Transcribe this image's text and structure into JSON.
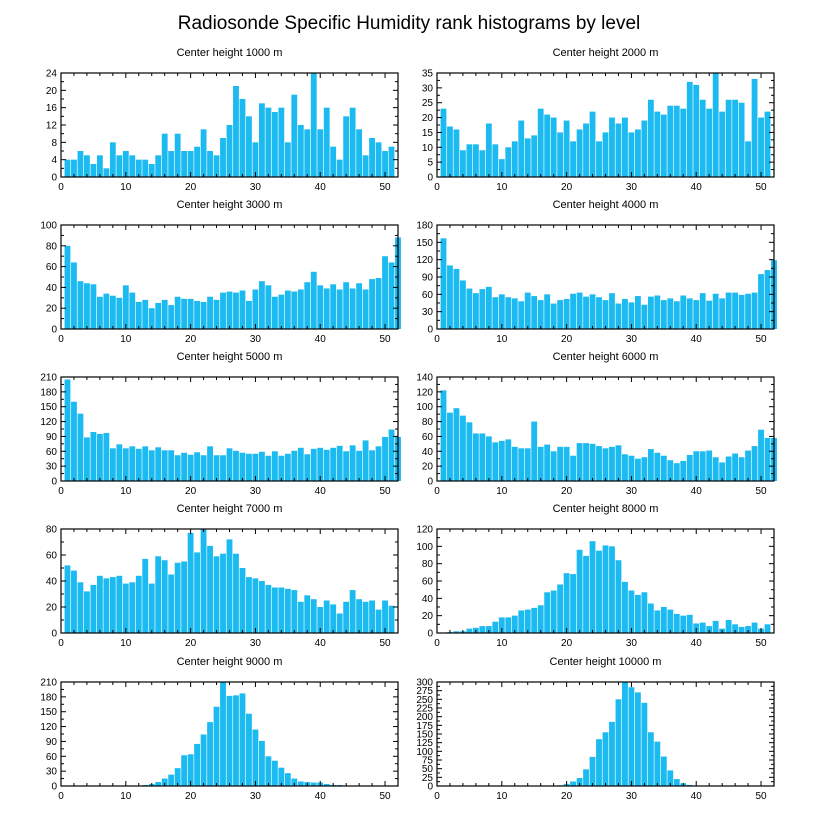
{
  "title": "Radiosonde Specific Humidity rank histograms by level",
  "bar_color": "#1bbaf0",
  "chart_data": [
    {
      "type": "bar",
      "title": "Center height 1000 m",
      "xlim": [
        0,
        52
      ],
      "ylim": [
        0,
        24
      ],
      "yticks": [
        0,
        4,
        8,
        12,
        16,
        20,
        24
      ],
      "xticks": [
        0,
        10,
        20,
        30,
        40,
        50
      ],
      "values": [
        4,
        4,
        6,
        5,
        3,
        5,
        2,
        8,
        5,
        6,
        5,
        4,
        4,
        3,
        5,
        10,
        6,
        10,
        6,
        6,
        7,
        11,
        6,
        5,
        9,
        12,
        21,
        18,
        14,
        8,
        17,
        16,
        15,
        16,
        8,
        19,
        12,
        11,
        24,
        11,
        16,
        7,
        4,
        14,
        16,
        11,
        5,
        9,
        8,
        6,
        7
      ]
    },
    {
      "type": "bar",
      "title": "Center height 2000 m",
      "xlim": [
        0,
        52
      ],
      "ylim": [
        0,
        35
      ],
      "yticks": [
        0,
        5,
        10,
        15,
        20,
        25,
        30,
        35
      ],
      "xticks": [
        0,
        10,
        20,
        30,
        40,
        50
      ],
      "values": [
        23,
        17,
        16,
        9,
        11,
        11,
        9,
        18,
        11,
        6,
        10,
        12,
        19,
        13,
        14,
        23,
        21,
        20,
        15,
        19,
        12,
        16,
        18,
        22,
        12,
        15,
        20,
        18,
        20,
        15,
        16,
        19,
        26,
        22,
        21,
        24,
        24,
        23,
        32,
        31,
        26,
        23,
        35,
        22,
        26,
        26,
        25,
        12,
        33,
        20,
        22
      ]
    },
    {
      "type": "bar",
      "title": "Center height 3000 m",
      "xlim": [
        0,
        52
      ],
      "ylim": [
        0,
        100
      ],
      "yticks": [
        0,
        20,
        40,
        60,
        80,
        100
      ],
      "xticks": [
        0,
        10,
        20,
        30,
        40,
        50
      ],
      "values": [
        80,
        64,
        46,
        44,
        43,
        31,
        34,
        32,
        30,
        42,
        35,
        26,
        28,
        20,
        25,
        28,
        23,
        31,
        29,
        29,
        27,
        26,
        31,
        28,
        35,
        36,
        35,
        37,
        27,
        38,
        46,
        42,
        31,
        33,
        37,
        36,
        38,
        45,
        55,
        42,
        39,
        43,
        38,
        45,
        39,
        44,
        38,
        48,
        49,
        70,
        64,
        88
      ]
    },
    {
      "type": "bar",
      "title": "Center height 4000 m",
      "xlim": [
        0,
        52
      ],
      "ylim": [
        0,
        180
      ],
      "yticks": [
        0,
        30,
        60,
        90,
        120,
        150,
        180
      ],
      "xticks": [
        0,
        10,
        20,
        30,
        40,
        50
      ],
      "values": [
        157,
        110,
        104,
        84,
        70,
        62,
        69,
        73,
        55,
        60,
        55,
        53,
        48,
        63,
        57,
        50,
        60,
        44,
        50,
        52,
        61,
        63,
        56,
        60,
        55,
        50,
        62,
        44,
        52,
        46,
        57,
        42,
        56,
        58,
        50,
        53,
        48,
        58,
        53,
        50,
        62,
        49,
        61,
        53,
        63,
        63,
        59,
        61,
        63,
        95,
        102,
        119
      ]
    },
    {
      "type": "bar",
      "title": "Center height 5000 m",
      "xlim": [
        0,
        52
      ],
      "ylim": [
        0,
        210
      ],
      "yticks": [
        0,
        30,
        60,
        90,
        120,
        150,
        180,
        210
      ],
      "xticks": [
        0,
        10,
        20,
        30,
        40,
        50
      ],
      "values": [
        205,
        160,
        136,
        88,
        99,
        95,
        97,
        66,
        74,
        66,
        70,
        65,
        70,
        62,
        68,
        62,
        62,
        52,
        57,
        53,
        58,
        52,
        70,
        52,
        52,
        66,
        61,
        57,
        55,
        55,
        59,
        51,
        60,
        51,
        55,
        61,
        67,
        54,
        65,
        67,
        63,
        67,
        71,
        60,
        72,
        61,
        82,
        62,
        70,
        89,
        104,
        89
      ]
    },
    {
      "type": "bar",
      "title": "Center height 6000 m",
      "xlim": [
        0,
        52
      ],
      "ylim": [
        0,
        140
      ],
      "yticks": [
        0,
        20,
        40,
        60,
        80,
        100,
        120,
        140
      ],
      "xticks": [
        0,
        10,
        20,
        30,
        40,
        50
      ],
      "values": [
        122,
        92,
        98,
        88,
        79,
        64,
        64,
        60,
        52,
        54,
        56,
        46,
        44,
        44,
        80,
        46,
        49,
        40,
        46,
        46,
        34,
        51,
        51,
        50,
        47,
        44,
        46,
        48,
        36,
        34,
        30,
        32,
        43,
        38,
        34,
        28,
        24,
        27,
        35,
        40,
        40,
        41,
        32,
        25,
        33,
        37,
        32,
        41,
        47,
        69,
        58,
        58
      ]
    },
    {
      "type": "bar",
      "title": "Center height 7000 m",
      "xlim": [
        0,
        52
      ],
      "ylim": [
        0,
        80
      ],
      "yticks": [
        0,
        20,
        40,
        60,
        80
      ],
      "xticks": [
        0,
        10,
        20,
        30,
        40,
        50
      ],
      "values": [
        52,
        48,
        39,
        32,
        37,
        44,
        42,
        43,
        44,
        38,
        39,
        44,
        57,
        38,
        59,
        56,
        45,
        54,
        55,
        77,
        62,
        80,
        67,
        59,
        61,
        72,
        61,
        50,
        43,
        42,
        40,
        37,
        35,
        35,
        34,
        33,
        24,
        29,
        26,
        20,
        25,
        22,
        15,
        24,
        33,
        26,
        24,
        25,
        18,
        25,
        21
      ]
    },
    {
      "type": "bar",
      "title": "Center height 8000 m",
      "xlim": [
        0,
        52
      ],
      "ylim": [
        0,
        120
      ],
      "yticks": [
        0,
        20,
        40,
        60,
        80,
        100,
        120
      ],
      "xticks": [
        0,
        10,
        20,
        30,
        40,
        50
      ],
      "values": [
        0,
        1,
        2,
        2,
        5,
        6,
        8,
        8,
        13,
        18,
        18,
        20,
        26,
        27,
        29,
        32,
        47,
        49,
        56,
        69,
        68,
        96,
        89,
        106,
        95,
        101,
        100,
        84,
        59,
        49,
        44,
        47,
        34,
        26,
        30,
        27,
        22,
        20,
        21,
        11,
        12,
        8,
        14,
        5,
        15,
        10,
        7,
        8,
        12,
        5,
        10
      ]
    },
    {
      "type": "bar",
      "title": "Center height 9000 m",
      "xlim": [
        0,
        52
      ],
      "ylim": [
        0,
        210
      ],
      "yticks": [
        0,
        30,
        60,
        90,
        120,
        150,
        180,
        210
      ],
      "xticks": [
        0,
        10,
        20,
        30,
        40,
        50
      ],
      "values": [
        0,
        0,
        0,
        0,
        0,
        0,
        0,
        0,
        0,
        0,
        0,
        1,
        2,
        4,
        8,
        15,
        23,
        36,
        62,
        64,
        85,
        104,
        129,
        160,
        210,
        182,
        183,
        187,
        146,
        114,
        91,
        60,
        51,
        37,
        26,
        15,
        9,
        8,
        7,
        7,
        4,
        2,
        2,
        1,
        1,
        0,
        0,
        0,
        0,
        0,
        0
      ]
    },
    {
      "type": "bar",
      "title": "Center height 10000 m",
      "xlim": [
        0,
        52
      ],
      "ylim": [
        0,
        300
      ],
      "yticks": [
        0,
        25,
        50,
        75,
        100,
        125,
        150,
        175,
        200,
        225,
        250,
        275,
        300
      ],
      "xticks": [
        0,
        10,
        20,
        30,
        40,
        50
      ],
      "values": [
        0,
        0,
        0,
        0,
        0,
        0,
        0,
        0,
        0,
        0,
        0,
        0,
        0,
        0,
        0,
        0,
        0,
        0,
        2,
        6,
        13,
        23,
        48,
        84,
        135,
        155,
        185,
        250,
        300,
        285,
        270,
        240,
        155,
        128,
        85,
        45,
        20,
        8,
        3,
        1,
        0,
        0,
        0,
        0,
        0,
        0,
        0,
        0,
        0,
        0,
        0
      ]
    }
  ]
}
